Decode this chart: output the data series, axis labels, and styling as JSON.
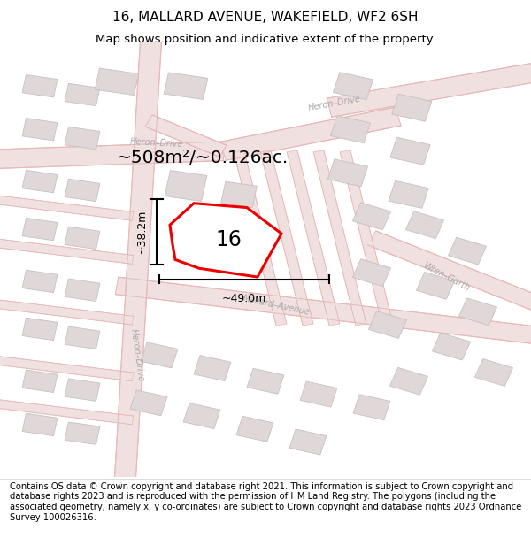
{
  "title": "16, MALLARD AVENUE, WAKEFIELD, WF2 6SH",
  "subtitle": "Map shows position and indicative extent of the property.",
  "footer": "Contains OS data © Crown copyright and database right 2021. This information is subject to Crown copyright and database rights 2023 and is reproduced with the permission of HM Land Registry. The polygons (including the associated geometry, namely x, y co-ordinates) are subject to Crown copyright and database rights 2023 Ordnance Survey 100026316.",
  "area_text": "~508m²/~0.126ac.",
  "property_number": "16",
  "dim_vertical": "~38.2m",
  "dim_horizontal": "~49.0m",
  "bg_color": "#ffffff",
  "map_bg": "#f9f6f6",
  "road_fill": "#f0e0e0",
  "road_edge": "#e8b8b8",
  "building_fill": "#e0d8d8",
  "building_edge": "#c8c0c0",
  "highlight_color": "#ee0000",
  "title_fontsize": 11,
  "subtitle_fontsize": 9.5,
  "footer_fontsize": 7.2,
  "road_label_color": "#aaaaaa",
  "road_label_size": 7
}
